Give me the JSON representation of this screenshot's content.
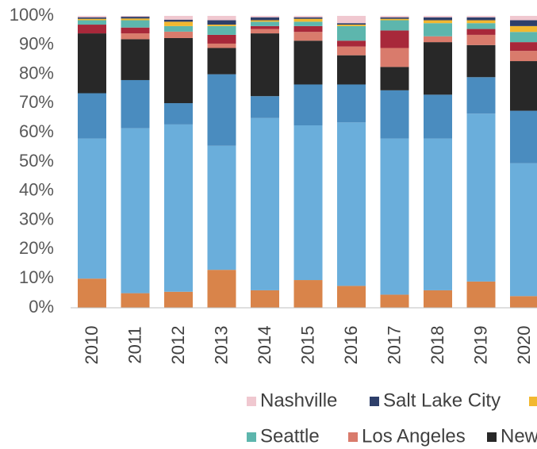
{
  "chart_data": {
    "type": "bar",
    "stacked": true,
    "categories": [
      "2010",
      "2011",
      "2012",
      "2013",
      "2014",
      "2015",
      "2016",
      "2017",
      "2018",
      "2019",
      "2020"
    ],
    "ylim": [
      0,
      100
    ],
    "yticks": [
      {
        "value": 0,
        "label": "0%"
      },
      {
        "value": 10,
        "label": "10%"
      },
      {
        "value": 20,
        "label": "20%"
      },
      {
        "value": 30,
        "label": "30%"
      },
      {
        "value": 40,
        "label": "40%"
      },
      {
        "value": 50,
        "label": "50%"
      },
      {
        "value": 60,
        "label": "60%"
      },
      {
        "value": 70,
        "label": "70%"
      },
      {
        "value": 80,
        "label": "80%"
      },
      {
        "value": 90,
        "label": "90%"
      },
      {
        "value": 100,
        "label": "100%"
      }
    ],
    "grid": false,
    "series": [
      {
        "name": null,
        "color": "#d9844a",
        "values": [
          10,
          5,
          5.5,
          13,
          6,
          9.5,
          7.5,
          4.5,
          6,
          9,
          4
        ]
      },
      {
        "name": null,
        "color": "#6aaedb",
        "values": [
          48,
          56.5,
          57.3,
          42.5,
          59,
          53,
          56,
          53.5,
          52,
          57.5,
          45.5
        ]
      },
      {
        "name": null,
        "color": "#4a8cbf",
        "values": [
          15.5,
          16.5,
          7.3,
          24.5,
          7.5,
          14,
          13,
          16.5,
          15,
          12.5,
          18
        ]
      },
      {
        "name": "New",
        "color": "#282828",
        "values": [
          20.5,
          14,
          22.3,
          9,
          21.5,
          15,
          10,
          8,
          18,
          11,
          17
        ]
      },
      {
        "name": "Los Angeles",
        "color": "#d97b6c",
        "values": [
          0,
          2,
          2.2,
          1.5,
          1.5,
          3,
          3,
          6.5,
          2,
          3.5,
          3.5
        ]
      },
      {
        "name": null,
        "color": "#a8283a",
        "values": [
          3,
          2,
          0,
          3,
          1,
          2,
          2,
          6,
          0,
          2,
          3
        ]
      },
      {
        "name": "Seattle",
        "color": "#5db6ad",
        "values": [
          1.5,
          2.5,
          1.9,
          3,
          1.5,
          1.5,
          5,
          3.5,
          4.5,
          2,
          3.5
        ]
      },
      {
        "name": null,
        "color": "#f2b830",
        "values": [
          0.5,
          0.6,
          1.5,
          0.5,
          0.5,
          1,
          0.5,
          0.5,
          1,
          1,
          2
        ]
      },
      {
        "name": "Salt Lake City",
        "color": "#2e3f6a",
        "values": [
          0.5,
          0.6,
          0.7,
          1.5,
          1,
          0.5,
          0.5,
          0.5,
          1,
          1,
          2
        ]
      },
      {
        "name": "Nashville",
        "color": "#f0c8d0",
        "values": [
          0.5,
          0.3,
          1.3,
          1.5,
          0.5,
          0.5,
          2.5,
          0.5,
          0.5,
          0.5,
          1.5
        ]
      }
    ]
  }
}
